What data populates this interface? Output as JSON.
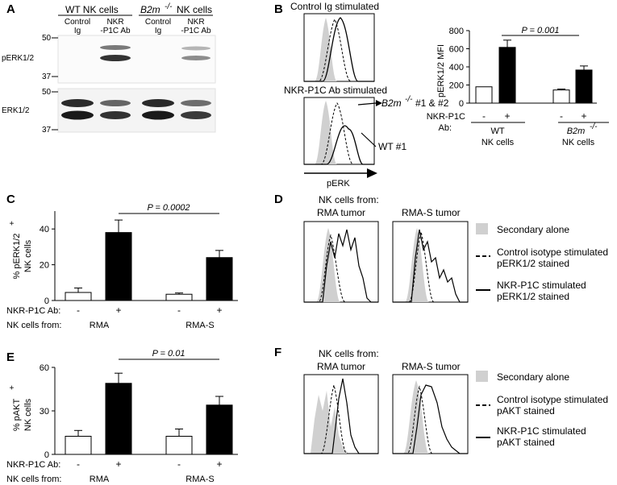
{
  "panels": {
    "A": {
      "label": "A",
      "headers": [
        "WT NK cells",
        "B2m",
        "-/-",
        " NK cells"
      ],
      "lanes": [
        [
          "Control",
          "Ig"
        ],
        [
          "NKR",
          "-P1C Ab"
        ],
        [
          "Control",
          "Ig"
        ],
        [
          "NKR",
          "-P1C Ab"
        ]
      ],
      "blots": [
        "pERK1/2",
        "ERK1/2"
      ],
      "mw_top": [
        "50",
        "37"
      ],
      "mw_bottom": [
        "50",
        "37"
      ]
    },
    "B": {
      "label": "B",
      "hist_titles": [
        "Control Ig stimulated",
        "NKR-P1C Ab stimulated"
      ],
      "annotations": [
        "B2m",
        "-/-",
        " #1 & #2",
        "WT #1"
      ],
      "xlabel": "pERK"
    },
    "B_bar": {
      "ylabel": "pERK1/2 MFI",
      "yticks": [
        "0",
        "200",
        "400",
        "600",
        "800"
      ],
      "pvalue": "P = 0.001",
      "row1_label": "NKR-P1C",
      "row1_label2": "Ab:",
      "signs": [
        "-",
        "+",
        "-",
        "+"
      ],
      "groups": [
        [
          "WT",
          "NK cells"
        ],
        [
          "B2m",
          "-/-",
          "NK cells"
        ]
      ]
    },
    "C": {
      "label": "C",
      "ylabel": [
        "% pERK1/2",
        "+",
        "NK cells"
      ],
      "yticks": [
        "0",
        "20",
        "40"
      ],
      "pvalue": "P = 0.0002",
      "row1": "NKR-P1C Ab:",
      "row2": "NK cells from:",
      "signs": [
        "-",
        "+",
        "-",
        "+"
      ],
      "groups": [
        "RMA",
        "RMA-S"
      ]
    },
    "D": {
      "label": "D",
      "header": "NK cells from:",
      "titles": [
        "RMA tumor",
        "RMA-S tumor"
      ],
      "legend": [
        "Secondary alone",
        "Control isotype stimulated",
        "pERK1/2 stained",
        "NKR-P1C stimulated",
        "pERK1/2 stained"
      ]
    },
    "E": {
      "label": "E",
      "ylabel": [
        "% pAKT",
        "+",
        "NK cells"
      ],
      "yticks": [
        "0",
        "30",
        "60"
      ],
      "pvalue": "P = 0.01",
      "row1": "NKR-P1C Ab:",
      "row2": "NK cells from:",
      "signs": [
        "-",
        "+",
        "-",
        "+"
      ],
      "groups": [
        "RMA",
        "RMA-S"
      ]
    },
    "F": {
      "label": "F",
      "header": "NK cells from:",
      "titles": [
        "RMA tumor",
        "RMA-S tumor"
      ],
      "legend": [
        "Secondary alone",
        "Control isotype stimulated",
        "pAKT stained",
        "NKR-P1C stimulated",
        "pAKT stained"
      ]
    }
  },
  "colors": {
    "filled_bar": "#000000",
    "open_bar": "#ffffff",
    "secondary_fill": "#d0d0d0"
  },
  "chart_data": [
    {
      "type": "bar",
      "panel": "B",
      "categories": [
        "WT -",
        "WT +",
        "B2m-/- -",
        "B2m-/- +"
      ],
      "values": [
        180,
        615,
        145,
        365
      ],
      "errors": [
        0,
        80,
        10,
        45
      ],
      "ylabel": "pERK1/2 MFI",
      "ylim": [
        0,
        800
      ],
      "pvalue": "P = 0.001"
    },
    {
      "type": "bar",
      "panel": "C",
      "categories": [
        "RMA -",
        "RMA +",
        "RMA-S -",
        "RMA-S +"
      ],
      "values": [
        4.5,
        38,
        3.5,
        24
      ],
      "errors": [
        2.5,
        7,
        0.7,
        4
      ],
      "ylabel": "% pERK1/2+ NK cells",
      "ylim": [
        0,
        50
      ],
      "pvalue": "P = 0.0002"
    },
    {
      "type": "bar",
      "panel": "E",
      "categories": [
        "RMA -",
        "RMA +",
        "RMA-S -",
        "RMA-S +"
      ],
      "values": [
        12.5,
        49,
        12.5,
        34
      ],
      "errors": [
        4,
        7,
        5,
        6
      ],
      "ylabel": "% pAKT+ NK cells",
      "ylim": [
        0,
        60
      ],
      "pvalue": "P = 0.01"
    }
  ]
}
